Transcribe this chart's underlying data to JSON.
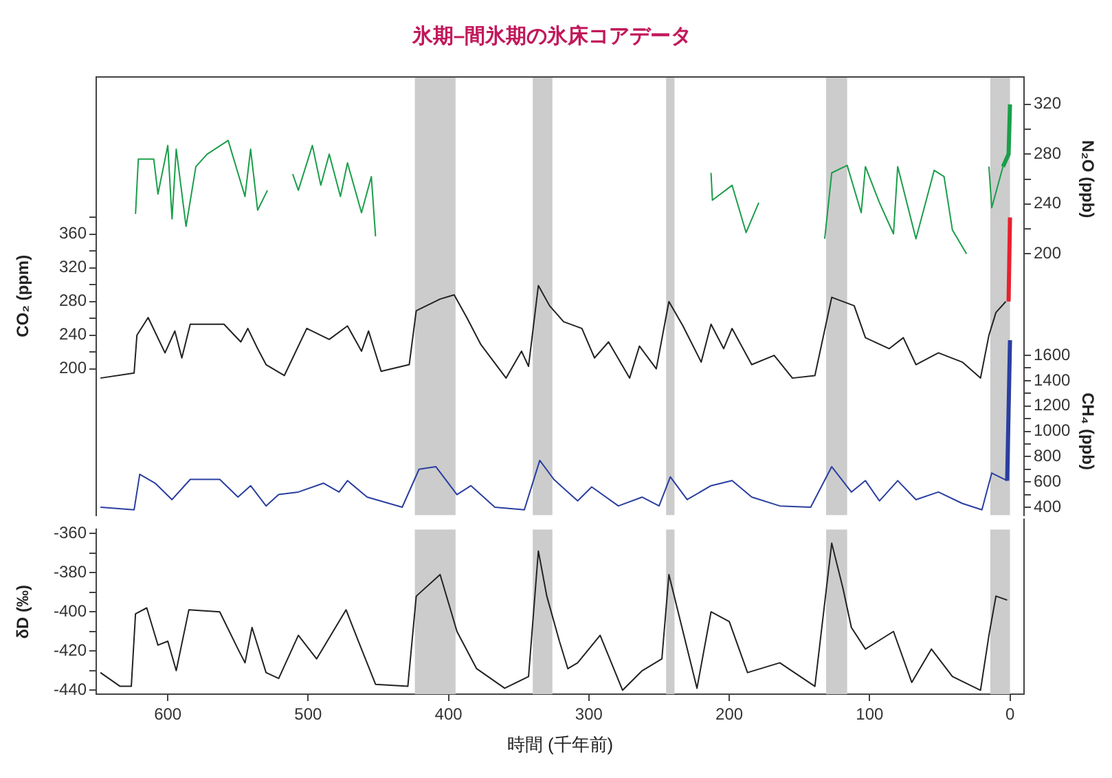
{
  "chart_data": [
    {
      "type": "line",
      "title": "氷期–間氷期の氷床コアデータ",
      "ylabel": "CO₂ (ppm)",
      "y2label": "N₂O (ppb)",
      "y3label": "CH₄ (ppb)",
      "tick_labels": "y",
      "xlim": [
        651,
        -10
      ],
      "ylim": [
        26,
        547
      ],
      "yticks": [
        200,
        {
          "value": 220,
          "label": null
        },
        240,
        {
          "value": 260,
          "label": null
        },
        280,
        {
          "value": 300,
          "label": null
        },
        320,
        {
          "value": 340,
          "label": null
        },
        360,
        {
          "value": 380,
          "label": null
        }
      ],
      "y2lim": [
        -10,
        342
      ],
      "y2ticks": [
        200,
        {
          "value": 220,
          "label": null
        },
        240,
        {
          "value": 260,
          "label": null
        },
        280,
        {
          "value": 300,
          "label": null
        },
        320
      ],
      "y3lim": [
        337,
        3800
      ],
      "y3ticks": [
        400,
        {
          "value": 500,
          "label": null
        },
        600,
        {
          "value": 700,
          "label": null
        },
        800,
        {
          "value": 900,
          "label": null
        },
        1000,
        {
          "value": 1100,
          "label": null
        },
        1200,
        {
          "value": 1300,
          "label": null
        },
        1400,
        {
          "value": 1500,
          "label": null
        },
        1600
      ],
      "bands": [
        {
          "axis": "x",
          "from": 424,
          "to": 395,
          "color": "#cccccc"
        },
        {
          "axis": "x",
          "from": 340,
          "to": 326,
          "color": "#cccccc"
        },
        {
          "axis": "x",
          "from": 245,
          "to": 239,
          "color": "#cccccc"
        },
        {
          "axis": "x",
          "from": 131,
          "to": 116,
          "color": "#cccccc"
        },
        {
          "axis": "x",
          "from": 14,
          "to": 0,
          "color": "#cccccc"
        }
      ],
      "series": [
        {
          "color": "#1a9e4a",
          "axis": "y2",
          "x": [
            623,
            621,
            610,
            607,
            600,
            597,
            594,
            587,
            580,
            572,
            557,
            545,
            541,
            536,
            529,
            520,
            511,
            507,
            497,
            491,
            485,
            477,
            472,
            462,
            455,
            452,
            300,
            213,
            212,
            198,
            188,
            179,
            150,
            132,
            127,
            116,
            106,
            103,
            93,
            83,
            80,
            67,
            54,
            47,
            41,
            31,
            20,
            15,
            13,
            5
          ],
          "values": [
            232,
            276,
            276,
            248,
            287,
            228,
            284,
            222,
            270,
            280,
            291,
            246,
            284,
            235,
            251,
            null,
            264,
            251,
            287,
            255,
            280,
            246,
            273,
            233,
            262,
            214,
            null,
            265,
            243,
            255,
            217,
            241,
            null,
            212,
            265,
            271,
            233,
            270,
            241,
            216,
            270,
            212,
            267,
            262,
            219,
            200,
            null,
            270,
            237,
            270
          ]
        },
        {
          "color": "#1a9e4a",
          "axis": "y2",
          "x": [
            5,
            1,
            0
          ],
          "values": [
            270,
            280,
            320
          ]
        },
        {
          "color": "#222222",
          "x": [
            648,
            624,
            622,
            614,
            602,
            595,
            590,
            584,
            560,
            548,
            543,
            536,
            530,
            517,
            501,
            485,
            472,
            462,
            457,
            448,
            428,
            423,
            406,
            396,
            387,
            377,
            359,
            348,
            343,
            336,
            328,
            318,
            305,
            296,
            286,
            271,
            264,
            252,
            243,
            233,
            220,
            213,
            204,
            198,
            184,
            168,
            155,
            139,
            127,
            111,
            103,
            86,
            76,
            67,
            51,
            34,
            21,
            15,
            10,
            3
          ],
          "values": [
            189,
            195,
            240,
            261,
            219,
            245,
            213,
            253,
            253,
            232,
            248,
            224,
            205,
            192,
            248,
            235,
            251,
            221,
            245,
            197,
            205,
            269,
            283,
            288,
            261,
            229,
            189,
            221,
            203,
            299,
            275,
            256,
            248,
            213,
            232,
            189,
            227,
            200,
            280,
            251,
            208,
            253,
            224,
            248,
            205,
            216,
            189,
            192,
            285,
            275,
            237,
            224,
            237,
            205,
            219,
            208,
            189,
            240,
            267,
            280
          ]
        },
        {
          "color": "#e8202e",
          "x": [
            1,
            0
          ],
          "values": [
            280,
            380
          ]
        },
        {
          "color": "#2a3ea0",
          "axis": "y3",
          "x": [
            648,
            624,
            620,
            609,
            597,
            584,
            563,
            550,
            541,
            530,
            521,
            507,
            489,
            478,
            472,
            458,
            433,
            421,
            409,
            394,
            384,
            367,
            346,
            335,
            325,
            315,
            308,
            298,
            279,
            262,
            250,
            242,
            230,
            213,
            198,
            184,
            164,
            142,
            127,
            113,
            103,
            93,
            80,
            67,
            51,
            34,
            20,
            13,
            2
          ],
          "values": [
            400,
            380,
            660,
            590,
            460,
            620,
            620,
            480,
            570,
            410,
            500,
            520,
            590,
            520,
            610,
            480,
            400,
            700,
            720,
            500,
            570,
            400,
            380,
            770,
            620,
            520,
            450,
            560,
            410,
            480,
            410,
            640,
            460,
            570,
            610,
            480,
            410,
            400,
            720,
            520,
            610,
            450,
            610,
            460,
            520,
            430,
            380,
            670,
            610
          ]
        },
        {
          "color": "#2a3ea0",
          "axis": "y3",
          "x": [
            2,
            0
          ],
          "values": [
            610,
            1720
          ]
        }
      ]
    },
    {
      "type": "line",
      "xlabel": "時間 (千年前)",
      "ylabel": "δD (‰)",
      "xlim": [
        651,
        -10
      ],
      "xticks": [
        600,
        500,
        400,
        300,
        200,
        100,
        0
      ],
      "ylim": [
        -442,
        -358
      ],
      "yticks": [
        -440,
        {
          "value": -430,
          "label": null
        },
        -420,
        {
          "value": -410,
          "label": null
        },
        -400,
        {
          "value": -390,
          "label": null
        },
        -380,
        {
          "value": -370,
          "label": null
        },
        -360
      ],
      "bands": [
        {
          "axis": "x",
          "from": 424,
          "to": 395,
          "color": "#cccccc"
        },
        {
          "axis": "x",
          "from": 340,
          "to": 326,
          "color": "#cccccc"
        },
        {
          "axis": "x",
          "from": 245,
          "to": 239,
          "color": "#cccccc"
        },
        {
          "axis": "x",
          "from": 131,
          "to": 116,
          "color": "#cccccc"
        },
        {
          "axis": "x",
          "from": 14,
          "to": 0,
          "color": "#cccccc"
        }
      ],
      "series": [
        {
          "color": "#222222",
          "x": [
            648,
            634,
            626,
            623,
            615,
            607,
            600,
            594,
            585,
            563,
            550,
            545,
            540,
            530,
            521,
            507,
            494,
            473,
            462,
            452,
            429,
            423,
            406,
            394,
            380,
            360,
            343,
            336,
            330,
            321,
            315,
            308,
            292,
            276,
            262,
            248,
            243,
            233,
            223,
            213,
            200,
            187,
            164,
            139,
            127,
            119,
            113,
            103,
            83,
            70,
            56,
            41,
            21,
            15,
            10,
            2
          ],
          "values": [
            -431,
            -438,
            -438,
            -401,
            -398,
            -417,
            -415,
            -430,
            -399,
            -400,
            -419,
            -426,
            -408,
            -431,
            -434,
            -412,
            -424,
            -399,
            -419,
            -437,
            -438,
            -392,
            -381,
            -410,
            -429,
            -439,
            -433,
            -369,
            -392,
            -415,
            -429,
            -426,
            -412,
            -440,
            -430,
            -424,
            -381,
            -410,
            -439,
            -400,
            -405,
            -431,
            -426,
            -438,
            -365,
            -388,
            -408,
            -419,
            -410,
            -436,
            -419,
            -433,
            -440,
            -412,
            -392,
            -394
          ]
        }
      ]
    }
  ]
}
